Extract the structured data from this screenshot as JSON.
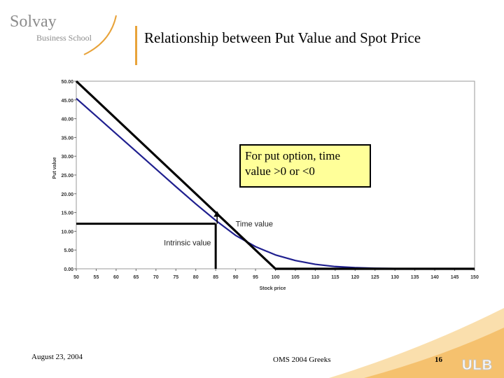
{
  "header": {
    "logo_name": "Solvay",
    "logo_sub": "Business School",
    "title": "Relationship between Put Value and Spot Price"
  },
  "callout": {
    "text": "For put option, time value >0 or <0"
  },
  "footer": {
    "date": "August 23, 2004",
    "center": "OMS 2004 Greeks",
    "page": "16",
    "brand": "ULB"
  },
  "colors": {
    "accent": "#e8a33a",
    "put_curve": "#1f1f8f",
    "intrinsic": "#000000",
    "callout_bg": "#ffff99"
  },
  "chart_data": {
    "type": "line",
    "xlabel": "Stock price",
    "ylabel": "Put value",
    "xlim": [
      50,
      150
    ],
    "ylim": [
      0,
      50
    ],
    "x_ticks": [
      "50",
      "55",
      "60",
      "65",
      "70",
      "75",
      "80",
      "85",
      "90",
      "95",
      "100",
      "105",
      "110",
      "115",
      "120",
      "125",
      "130",
      "135",
      "140",
      "145",
      "150"
    ],
    "y_ticks": [
      "0.00",
      "5.00",
      "10.00",
      "15.00",
      "20.00",
      "25.00",
      "30.00",
      "35.00",
      "40.00",
      "45.00",
      "50.00"
    ],
    "grid": false,
    "series": [
      {
        "name": "",
        "x": [
          50,
          55,
          60,
          65,
          70,
          75,
          80,
          85,
          90,
          95,
          100,
          105,
          110,
          115,
          120,
          125,
          130,
          135,
          140,
          145,
          150
        ],
        "y": [
          45.4,
          40.7,
          36.0,
          31.3,
          26.6,
          21.9,
          17.3,
          12.9,
          8.9,
          5.9,
          3.7,
          2.2,
          1.2,
          0.6,
          0.3,
          0.15,
          0.07,
          0.03,
          0.01,
          0.0,
          0.0
        ]
      },
      {
        "name": "",
        "x": [
          50,
          100,
          150
        ],
        "y": [
          50,
          0,
          0
        ]
      }
    ],
    "annotations": [
      {
        "text": "Time value",
        "x": 90,
        "y": 12
      },
      {
        "text": "Intrinsic value",
        "x": 72,
        "y": 7
      }
    ],
    "marker_spot": 85,
    "marker_value": 12
  }
}
